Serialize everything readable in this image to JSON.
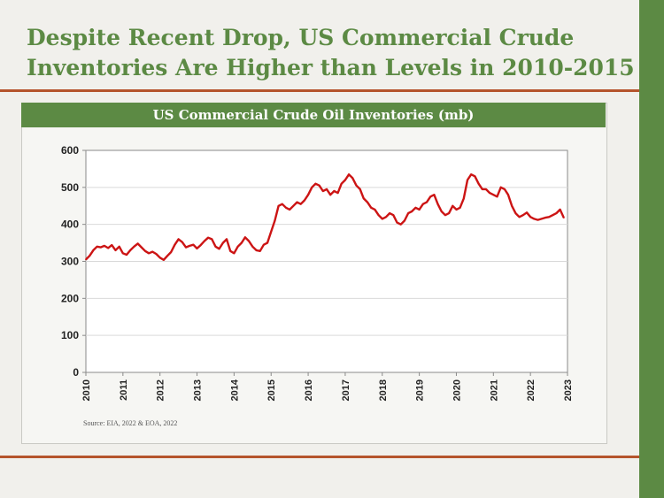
{
  "slide": {
    "title_line1": "Despite Recent Drop, US Commercial Crude",
    "title_line2": "Inventories Are Higher than Levels in 2010-2015",
    "source": "Source: EIA, 2022 & EOA, 2022"
  },
  "colors": {
    "accent": "#5c8a44",
    "rule": "#b5542c",
    "line": "#cc1414"
  },
  "chart_data": {
    "type": "line",
    "title": "US Commercial Crude Oil Inventories (mb)",
    "xlabel": "",
    "ylabel": "",
    "xlim": [
      2010,
      2023
    ],
    "ylim": [
      0,
      600
    ],
    "x_ticks": [
      "2010",
      "2011",
      "2012",
      "2013",
      "2014",
      "2015",
      "2016",
      "2017",
      "2018",
      "2019",
      "2020",
      "2021",
      "2022",
      "2023"
    ],
    "y_ticks": [
      "0",
      "100",
      "200",
      "300",
      "400",
      "500",
      "600"
    ],
    "grid": "horizontal",
    "series": [
      {
        "name": "",
        "x": [
          2010.0,
          2010.1,
          2010.2,
          2010.3,
          2010.4,
          2010.5,
          2010.6,
          2010.7,
          2010.8,
          2010.9,
          2011.0,
          2011.1,
          2011.2,
          2011.3,
          2011.4,
          2011.5,
          2011.6,
          2011.7,
          2011.8,
          2011.9,
          2012.0,
          2012.1,
          2012.2,
          2012.3,
          2012.4,
          2012.5,
          2012.6,
          2012.7,
          2012.8,
          2012.9,
          2013.0,
          2013.1,
          2013.2,
          2013.3,
          2013.4,
          2013.5,
          2013.6,
          2013.7,
          2013.8,
          2013.9,
          2014.0,
          2014.1,
          2014.2,
          2014.3,
          2014.4,
          2014.5,
          2014.6,
          2014.7,
          2014.8,
          2014.9,
          2015.0,
          2015.1,
          2015.2,
          2015.3,
          2015.4,
          2015.5,
          2015.6,
          2015.7,
          2015.8,
          2015.9,
          2016.0,
          2016.1,
          2016.2,
          2016.3,
          2016.4,
          2016.5,
          2016.6,
          2016.7,
          2016.8,
          2016.9,
          2017.0,
          2017.1,
          2017.2,
          2017.3,
          2017.4,
          2017.5,
          2017.6,
          2017.7,
          2017.8,
          2017.9,
          2018.0,
          2018.1,
          2018.2,
          2018.3,
          2018.4,
          2018.5,
          2018.6,
          2018.7,
          2018.8,
          2018.9,
          2019.0,
          2019.1,
          2019.2,
          2019.3,
          2019.4,
          2019.5,
          2019.6,
          2019.7,
          2019.8,
          2019.9,
          2020.0,
          2020.1,
          2020.2,
          2020.3,
          2020.4,
          2020.5,
          2020.6,
          2020.7,
          2020.8,
          2020.9,
          2021.0,
          2021.1,
          2021.2,
          2021.3,
          2021.4,
          2021.5,
          2021.6,
          2021.7,
          2021.8,
          2021.9,
          2022.0,
          2022.1,
          2022.2,
          2022.3,
          2022.4,
          2022.5,
          2022.6,
          2022.7,
          2022.8,
          2022.9
        ],
        "y": [
          305,
          315,
          330,
          340,
          338,
          342,
          336,
          344,
          330,
          340,
          322,
          318,
          330,
          340,
          348,
          338,
          328,
          322,
          326,
          320,
          310,
          304,
          315,
          325,
          345,
          360,
          352,
          338,
          342,
          345,
          335,
          344,
          355,
          364,
          360,
          340,
          334,
          350,
          360,
          328,
          322,
          340,
          350,
          365,
          355,
          340,
          330,
          328,
          345,
          350,
          380,
          410,
          450,
          455,
          445,
          440,
          450,
          460,
          455,
          465,
          480,
          500,
          510,
          505,
          490,
          495,
          480,
          490,
          485,
          510,
          520,
          535,
          525,
          505,
          495,
          470,
          460,
          445,
          440,
          425,
          415,
          420,
          430,
          425,
          405,
          400,
          410,
          430,
          435,
          445,
          440,
          455,
          460,
          475,
          480,
          455,
          435,
          425,
          430,
          450,
          440,
          445,
          470,
          520,
          535,
          530,
          510,
          495,
          495,
          485,
          480,
          475,
          500,
          495,
          480,
          450,
          430,
          420,
          425,
          432,
          420,
          415,
          412,
          415,
          418,
          420,
          425,
          430,
          440,
          418
        ]
      }
    ]
  }
}
